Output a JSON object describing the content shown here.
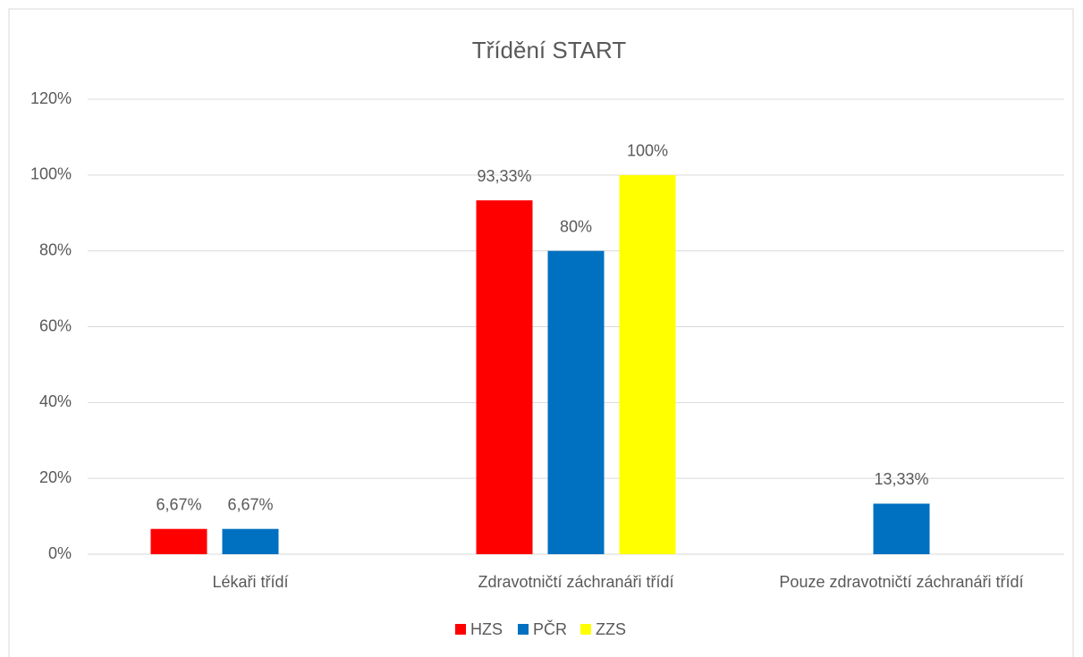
{
  "chart_data": {
    "type": "bar",
    "title": "Třídění START",
    "categories": [
      "Lékaři třídí",
      "Zdravotničtí záchranáři třídí",
      "Pouze zdravotničtí záchranáři třídí"
    ],
    "series": [
      {
        "name": "HZS",
        "color": "#ff0000",
        "values": [
          6.67,
          93.33,
          null
        ],
        "value_labels": [
          "6,67%",
          "93,33%",
          null
        ]
      },
      {
        "name": "PČR",
        "color": "#0070c0",
        "values": [
          6.67,
          80,
          13.33
        ],
        "value_labels": [
          "6,67%",
          "80%",
          "13,33%"
        ]
      },
      {
        "name": "ZZS",
        "color": "#ffff00",
        "values": [
          null,
          100,
          null
        ],
        "value_labels": [
          null,
          "100%",
          null
        ]
      }
    ],
    "ylim": [
      0,
      120
    ],
    "yticks": [
      {
        "value": 0,
        "label": "0%"
      },
      {
        "value": 20,
        "label": "20%"
      },
      {
        "value": 40,
        "label": "40%"
      },
      {
        "value": 60,
        "label": "60%"
      },
      {
        "value": 80,
        "label": "80%"
      },
      {
        "value": 100,
        "label": "100%"
      },
      {
        "value": 120,
        "label": "120%"
      }
    ],
    "grid": true,
    "legend": "bottom"
  }
}
